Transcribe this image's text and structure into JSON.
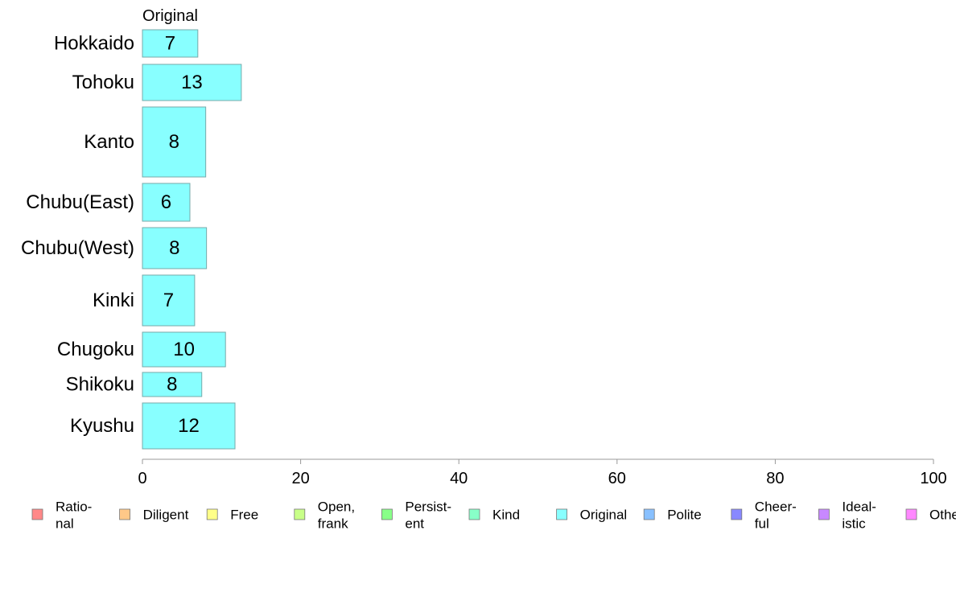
{
  "chart_data": {
    "type": "bar",
    "orientation": "horizontal",
    "stacked": true,
    "column_header": "Original",
    "categories": [
      "Hokkaido",
      "Tohoku",
      "Kanto",
      "Chubu(East)",
      "Chubu(West)",
      "Kinki",
      "Chugoku",
      "Shikoku",
      "Kyushu"
    ],
    "series": [
      {
        "name": "Original",
        "color": "#88ffff",
        "values": [
          7,
          12.5,
          8,
          6,
          8.1,
          6.6,
          10.5,
          7.5,
          11.7
        ],
        "labels": [
          "7",
          "13",
          "8",
          "6",
          "8",
          "7",
          "10",
          "8",
          "12"
        ]
      }
    ],
    "xlim": [
      0,
      100
    ],
    "xticks": [
      "0",
      "20",
      "40",
      "60",
      "80",
      "100"
    ],
    "xlabel": "",
    "ylabel": "",
    "grid": false,
    "legend_position": "bottom",
    "legend": [
      {
        "lines": [
          "Ratio-",
          "nal"
        ],
        "color": "#ff8888"
      },
      {
        "lines": [
          "Diligent"
        ],
        "color": "#ffc888"
      },
      {
        "lines": [
          "Free"
        ],
        "color": "#ffff88"
      },
      {
        "lines": [
          "Open,",
          "frank"
        ],
        "color": "#c8ff88"
      },
      {
        "lines": [
          "Persist-",
          "ent"
        ],
        "color": "#88ff88"
      },
      {
        "lines": [
          "Kind"
        ],
        "color": "#88ffc8"
      },
      {
        "lines": [
          "Original"
        ],
        "color": "#88ffff"
      },
      {
        "lines": [
          "Polite"
        ],
        "color": "#88c0ff"
      },
      {
        "lines": [
          "Cheer-",
          "ful"
        ],
        "color": "#8888ff"
      },
      {
        "lines": [
          "Ideal-",
          "istic"
        ],
        "color": "#c888ff"
      },
      {
        "lines": [
          "Other"
        ],
        "color": "#ff88ff"
      }
    ]
  }
}
